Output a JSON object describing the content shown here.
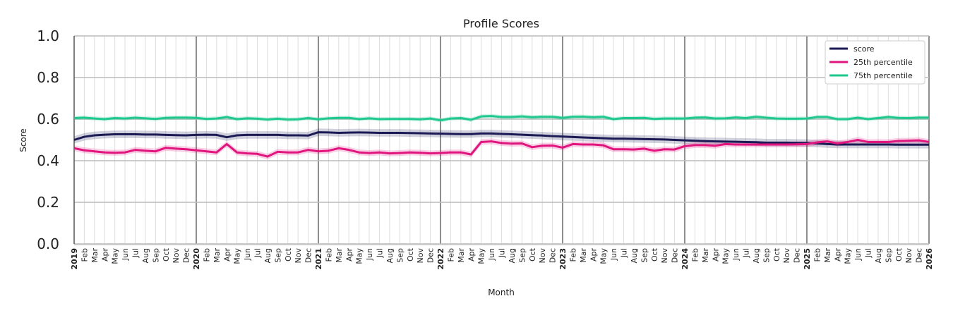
{
  "chart_data": {
    "type": "line",
    "title": "Profile Scores",
    "xlabel": "Month",
    "ylabel": "Score",
    "ylim": [
      0,
      1
    ],
    "yticks": [
      "0.0",
      "0.2",
      "0.4",
      "0.6",
      "0.8",
      "1.0"
    ],
    "grid": true,
    "legend_position": "top-right",
    "start_month": "2019-01",
    "month_labels": [
      "Jan",
      "Feb",
      "Mar",
      "Apr",
      "May",
      "Jun",
      "Jul",
      "Aug",
      "Sep",
      "Oct",
      "Nov",
      "Dec"
    ],
    "series": [
      {
        "name": "score",
        "color": "#1b1a55",
        "values": [
          0.5,
          0.515,
          0.522,
          0.525,
          0.527,
          0.527,
          0.527,
          0.526,
          0.526,
          0.524,
          0.523,
          0.522,
          0.524,
          0.525,
          0.524,
          0.513,
          0.522,
          0.524,
          0.524,
          0.524,
          0.524,
          0.522,
          0.522,
          0.521,
          0.537,
          0.536,
          0.534,
          0.535,
          0.536,
          0.535,
          0.534,
          0.534,
          0.534,
          0.533,
          0.532,
          0.531,
          0.53,
          0.529,
          0.528,
          0.528,
          0.531,
          0.531,
          0.529,
          0.527,
          0.525,
          0.523,
          0.521,
          0.518,
          0.516,
          0.514,
          0.512,
          0.51,
          0.508,
          0.506,
          0.506,
          0.505,
          0.504,
          0.503,
          0.502,
          0.5,
          0.498,
          0.496,
          0.494,
          0.493,
          0.492,
          0.491,
          0.49,
          0.489,
          0.487,
          0.487,
          0.487,
          0.486,
          0.485,
          0.483,
          0.48,
          0.478,
          0.478,
          0.478,
          0.478,
          0.478,
          0.478,
          0.477,
          0.477,
          0.477,
          0.477
        ]
      },
      {
        "name": "25th percentile",
        "color": "#e0157e",
        "values": [
          0.46,
          0.45,
          0.445,
          0.44,
          0.438,
          0.44,
          0.452,
          0.448,
          0.445,
          0.462,
          0.458,
          0.455,
          0.45,
          0.445,
          0.44,
          0.48,
          0.44,
          0.435,
          0.433,
          0.42,
          0.443,
          0.44,
          0.44,
          0.452,
          0.445,
          0.448,
          0.46,
          0.452,
          0.44,
          0.437,
          0.44,
          0.435,
          0.437,
          0.44,
          0.438,
          0.435,
          0.437,
          0.44,
          0.44,
          0.43,
          0.49,
          0.493,
          0.485,
          0.482,
          0.483,
          0.465,
          0.472,
          0.473,
          0.463,
          0.48,
          0.478,
          0.478,
          0.474,
          0.455,
          0.455,
          0.454,
          0.458,
          0.448,
          0.455,
          0.454,
          0.47,
          0.475,
          0.475,
          0.472,
          0.48,
          0.478,
          0.478,
          0.478,
          0.478,
          0.478,
          0.478,
          0.479,
          0.48,
          0.488,
          0.493,
          0.483,
          0.49,
          0.5,
          0.49,
          0.49,
          0.49,
          0.495,
          0.496,
          0.498,
          0.49
        ]
      },
      {
        "name": "75th percentile",
        "color": "#1fc98e",
        "values": [
          0.605,
          0.607,
          0.603,
          0.6,
          0.605,
          0.603,
          0.607,
          0.604,
          0.601,
          0.606,
          0.607,
          0.607,
          0.606,
          0.601,
          0.603,
          0.61,
          0.6,
          0.604,
          0.602,
          0.598,
          0.602,
          0.598,
          0.599,
          0.605,
          0.599,
          0.604,
          0.606,
          0.606,
          0.6,
          0.604,
          0.6,
          0.601,
          0.601,
          0.601,
          0.599,
          0.603,
          0.594,
          0.603,
          0.605,
          0.597,
          0.613,
          0.615,
          0.61,
          0.61,
          0.613,
          0.609,
          0.611,
          0.611,
          0.606,
          0.611,
          0.612,
          0.609,
          0.611,
          0.6,
          0.605,
          0.605,
          0.606,
          0.601,
          0.603,
          0.603,
          0.603,
          0.607,
          0.608,
          0.603,
          0.604,
          0.608,
          0.605,
          0.611,
          0.607,
          0.603,
          0.602,
          0.602,
          0.603,
          0.61,
          0.61,
          0.6,
          0.6,
          0.607,
          0.6,
          0.605,
          0.61,
          0.606,
          0.605,
          0.607,
          0.607
        ]
      }
    ]
  }
}
